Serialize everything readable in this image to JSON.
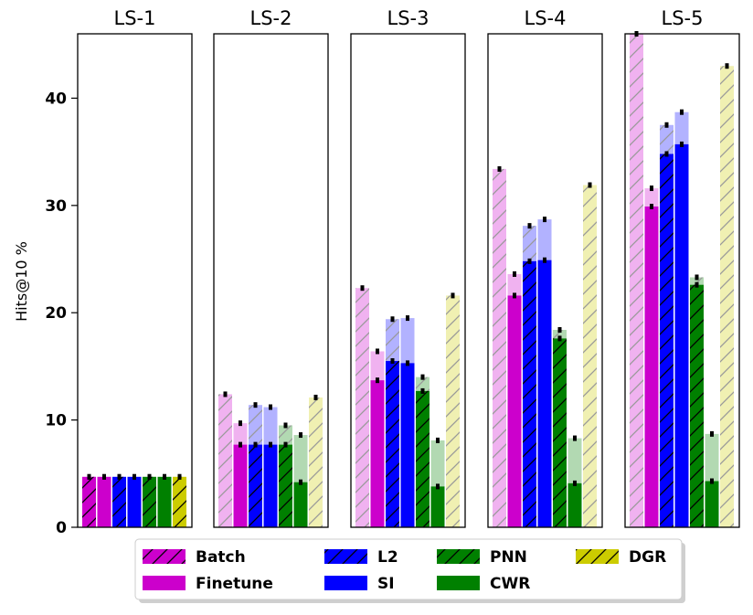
{
  "chart_data": {
    "type": "bar",
    "ylabel": "Hits@10 %",
    "ylim": [
      0,
      46
    ],
    "yticks": [
      0,
      10,
      20,
      30,
      40
    ],
    "grid": false,
    "legend_position": "bottom",
    "methods": [
      {
        "name": "Batch",
        "color": "#cc00cc",
        "hatch": true
      },
      {
        "name": "Finetune",
        "color": "#cc00cc",
        "hatch": false
      },
      {
        "name": "L2",
        "color": "#0000ff",
        "hatch": true
      },
      {
        "name": "SI",
        "color": "#0000ff",
        "hatch": false
      },
      {
        "name": "PNN",
        "color": "#008000",
        "hatch": true
      },
      {
        "name": "CWR",
        "color": "#008000",
        "hatch": false
      },
      {
        "name": "DGR",
        "color": "#cccc00",
        "hatch": true
      }
    ],
    "panels": [
      {
        "title": "LS-1",
        "values": [
          4.7,
          4.7,
          4.7,
          4.7,
          4.7,
          4.7,
          4.7
        ],
        "upper": [
          4.7,
          4.7,
          4.7,
          4.7,
          4.7,
          4.7,
          4.7
        ]
      },
      {
        "title": "LS-2",
        "values": [
          0,
          7.7,
          7.7,
          7.7,
          7.7,
          4.2,
          0
        ],
        "upper": [
          12.4,
          9.7,
          11.4,
          11.2,
          9.5,
          8.6,
          12.1
        ]
      },
      {
        "title": "LS-3",
        "values": [
          0,
          13.7,
          15.5,
          15.3,
          12.7,
          3.8,
          0
        ],
        "upper": [
          22.3,
          16.4,
          19.4,
          19.5,
          14.0,
          8.1,
          21.6
        ]
      },
      {
        "title": "LS-4",
        "values": [
          0,
          21.6,
          24.8,
          24.9,
          17.6,
          4.1,
          0
        ],
        "upper": [
          33.4,
          23.6,
          28.1,
          28.7,
          18.4,
          8.3,
          31.9
        ]
      },
      {
        "title": "LS-5",
        "values": [
          0,
          29.9,
          34.8,
          35.7,
          22.6,
          4.3,
          0
        ],
        "upper": [
          46,
          31.6,
          37.5,
          38.7,
          23.3,
          8.7,
          43.0
        ]
      }
    ]
  }
}
